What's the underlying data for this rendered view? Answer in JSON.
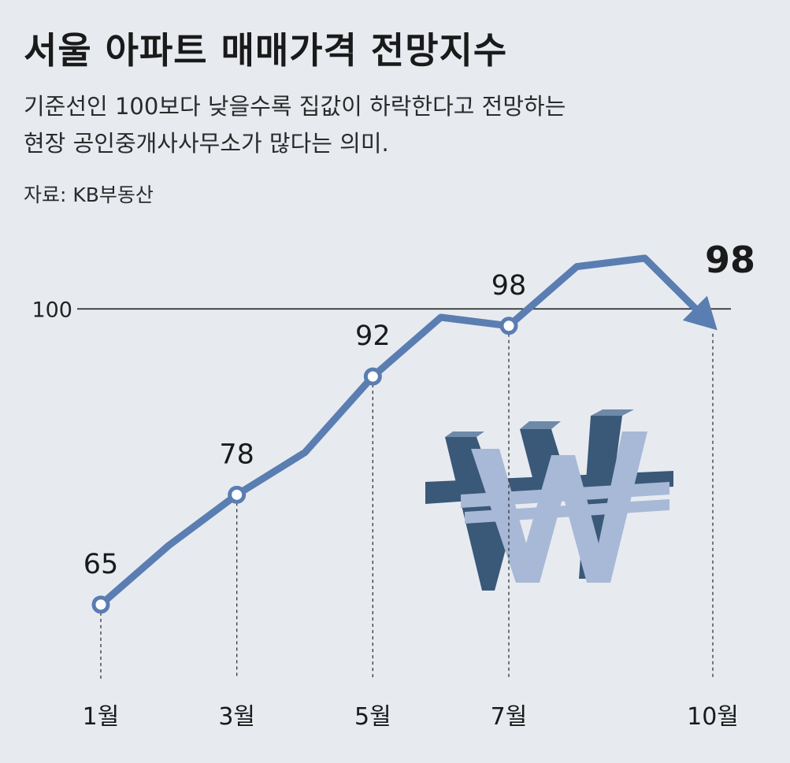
{
  "title": "서울 아파트 매매가격 전망지수",
  "subtitle_line1": "기준선인 100보다 낮을수록 집값이 하락한다고 전망하는",
  "subtitle_line2": "현장 공인중개사사무소가 많다는 의미.",
  "source": "자료: KB부동산",
  "colors": {
    "background": "#e7ebf0",
    "line": "#5a7db2",
    "reference_line": "#222222",
    "won_face": "#a7b9d6",
    "won_side": "#3a5878",
    "won_top": "#6f8aa8"
  },
  "icon": "won-sign-3d-icon",
  "chart_data": {
    "type": "line",
    "title": "서울 아파트 매매가격 전망지수",
    "x": [
      1,
      2,
      3,
      4,
      5,
      6,
      7,
      8,
      9,
      10
    ],
    "x_tick_values": [
      1,
      3,
      5,
      7,
      10
    ],
    "x_tick_labels": [
      "1월",
      "3월",
      "5월",
      "7월",
      "10월"
    ],
    "values": [
      65,
      72,
      78,
      83,
      92,
      99,
      98,
      105,
      106,
      98
    ],
    "labeled_points": [
      {
        "x": 1,
        "label": "65"
      },
      {
        "x": 3,
        "label": "78"
      },
      {
        "x": 5,
        "label": "92"
      },
      {
        "x": 7,
        "label": "98"
      },
      {
        "x": 10,
        "label": "98"
      }
    ],
    "reference": {
      "value": 100,
      "label": "100"
    },
    "ylim": [
      62,
      110
    ],
    "xlim": [
      1,
      10
    ],
    "grid": false,
    "legend": "none"
  }
}
